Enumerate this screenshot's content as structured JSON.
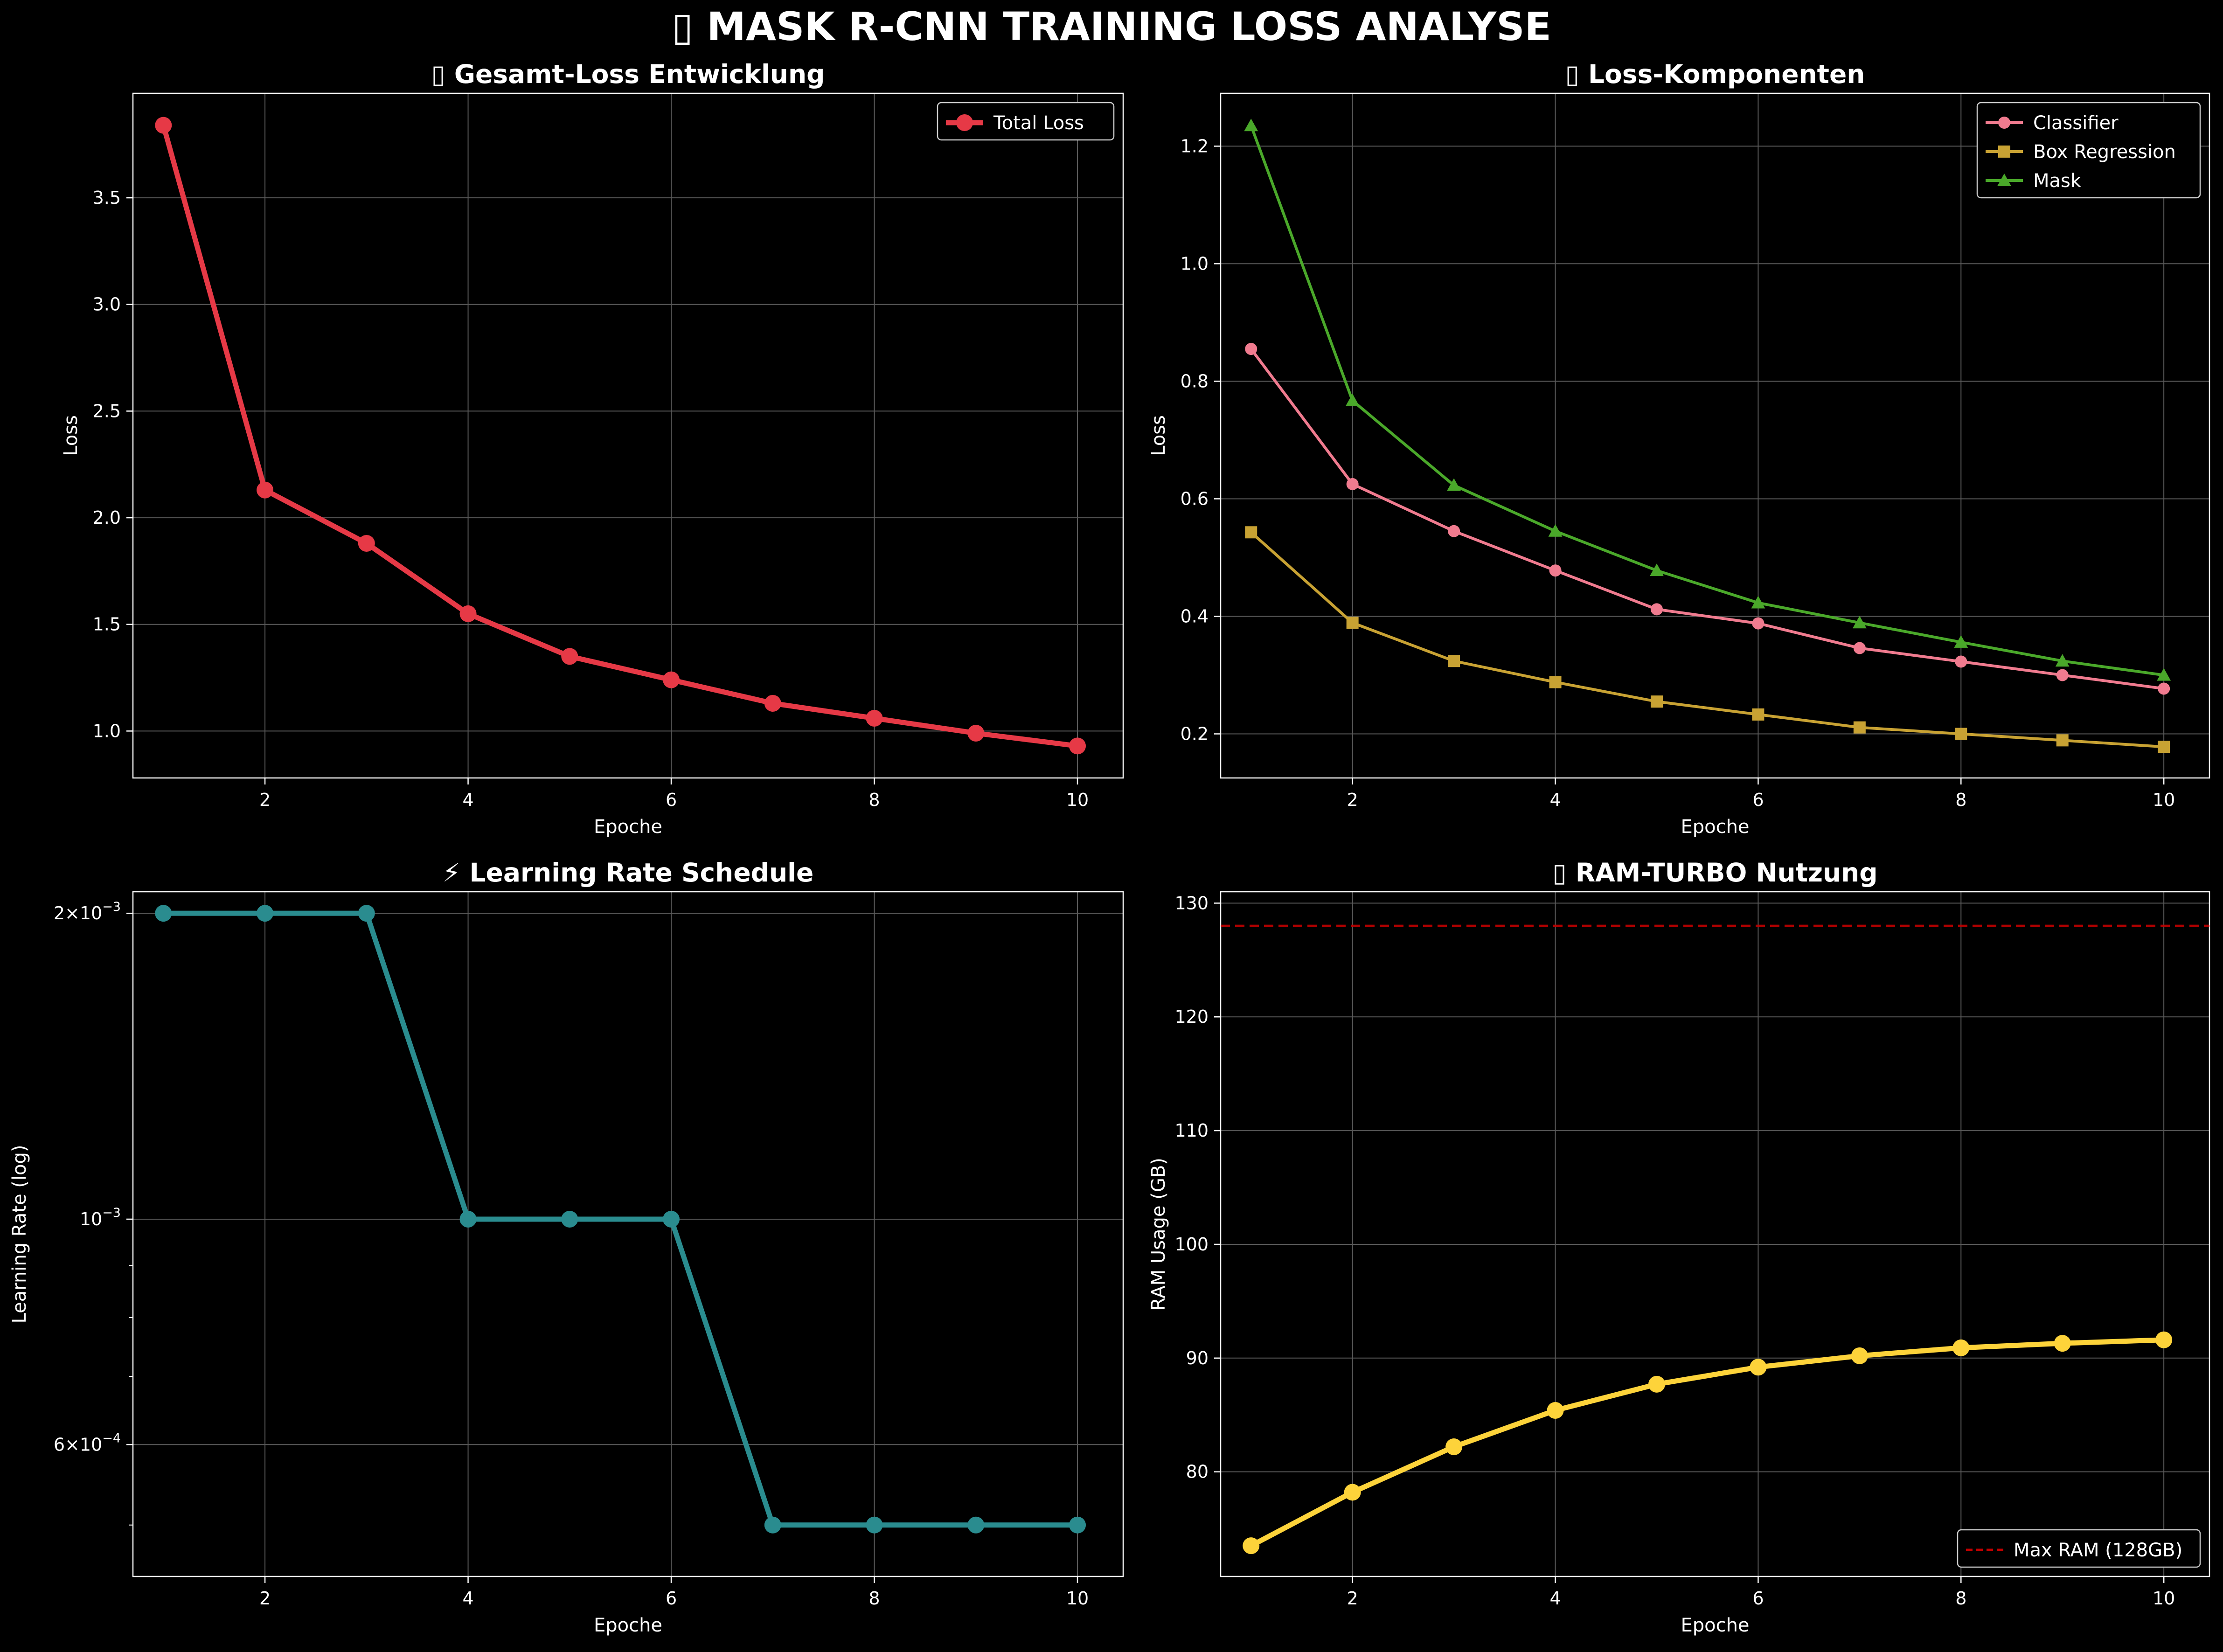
{
  "suptitle": "▯ MASK R-CNN TRAINING LOSS ANALYSE",
  "colors": {
    "background": "#000000",
    "foreground": "#ffffff",
    "grid": "#5a5a5a",
    "total": "#e63946",
    "classifier": "#f07b8f",
    "box": "#c8a233",
    "mask": "#4aa82a",
    "lr": "#2a8c8f",
    "ram": "#fdd33a",
    "maxram": "#c00000"
  },
  "chart_data": [
    {
      "id": "total",
      "type": "line",
      "title": "▯ Gesamt-Loss Entwicklung",
      "xlabel": "Epoche",
      "ylabel": "Loss",
      "xlim": [
        0.7,
        10.45
      ],
      "ylim": [
        0.78,
        3.99
      ],
      "xticks": [
        2,
        4,
        6,
        8,
        10
      ],
      "yticks": [
        1.0,
        1.5,
        2.0,
        2.5,
        3.0,
        3.5
      ],
      "ytick_labels": [
        "1.0",
        "1.5",
        "2.0",
        "2.5",
        "3.0",
        "3.5"
      ],
      "grid": true,
      "legend": "top-right",
      "x": [
        1,
        2,
        3,
        4,
        5,
        6,
        7,
        8,
        9,
        10
      ],
      "series": [
        {
          "name": "Total Loss",
          "color_key": "total",
          "marker": "circle",
          "values": [
            3.84,
            2.13,
            1.88,
            1.55,
            1.35,
            1.24,
            1.13,
            1.06,
            0.99,
            0.93
          ]
        }
      ]
    },
    {
      "id": "components",
      "type": "line",
      "title": "▯ Loss-Komponenten",
      "xlabel": "Epoche",
      "ylabel": "Loss",
      "xlim": [
        0.7,
        10.45
      ],
      "ylim": [
        0.125,
        1.29
      ],
      "xticks": [
        2,
        4,
        6,
        8,
        10
      ],
      "yticks": [
        0.2,
        0.4,
        0.6,
        0.8,
        1.0,
        1.2
      ],
      "ytick_labels": [
        "0.2",
        "0.4",
        "0.6",
        "0.8",
        "1.0",
        "1.2"
      ],
      "grid": true,
      "legend": "top-right",
      "x": [
        1,
        2,
        3,
        4,
        5,
        6,
        7,
        8,
        9,
        10
      ],
      "series": [
        {
          "name": "Classifier",
          "color_key": "classifier",
          "marker": "circle",
          "values": [
            0.855,
            0.625,
            0.545,
            0.478,
            0.412,
            0.388,
            0.346,
            0.323,
            0.3,
            0.277
          ]
        },
        {
          "name": "Box Regression",
          "color_key": "box",
          "marker": "square",
          "values": [
            0.543,
            0.389,
            0.324,
            0.288,
            0.255,
            0.233,
            0.211,
            0.2,
            0.189,
            0.178
          ]
        },
        {
          "name": "Mask",
          "color_key": "mask",
          "marker": "triangle",
          "values": [
            1.235,
            0.767,
            0.623,
            0.545,
            0.478,
            0.423,
            0.389,
            0.356,
            0.324,
            0.3
          ]
        }
      ]
    },
    {
      "id": "lr",
      "type": "line",
      "title": "⚡ Learning Rate Schedule",
      "xlabel": "Epoche",
      "ylabel": "Learning Rate (log)",
      "scale_y": "log",
      "xlim": [
        0.7,
        10.45
      ],
      "ylim": [
        0.000445,
        0.0021
      ],
      "xticks": [
        2,
        4,
        6,
        8,
        10
      ],
      "yticks_major": [
        0.002,
        0.001,
        0.0006
      ],
      "ytick_labels": [
        "2×10⁻³",
        "10⁻³",
        "6×10⁻⁴"
      ],
      "yticks_minor": [
        0.0005,
        0.0007,
        0.0008,
        0.0009
      ],
      "grid": true,
      "x": [
        1,
        2,
        3,
        4,
        5,
        6,
        7,
        8,
        9,
        10
      ],
      "series": [
        {
          "color_key": "lr",
          "marker": "circle",
          "values": [
            0.002,
            0.002,
            0.002,
            0.001,
            0.001,
            0.001,
            0.0005,
            0.0005,
            0.0005,
            0.0005
          ]
        }
      ]
    },
    {
      "id": "ram",
      "type": "line",
      "title": "▯ RAM-TURBO Nutzung",
      "xlabel": "Epoche",
      "ylabel": "RAM Usage (GB)",
      "xlim": [
        0.7,
        10.45
      ],
      "ylim": [
        70.8,
        131.0
      ],
      "xticks": [
        2,
        4,
        6,
        8,
        10
      ],
      "yticks": [
        80,
        90,
        100,
        110,
        120,
        130
      ],
      "ytick_labels": [
        "80",
        "90",
        "100",
        "110",
        "120",
        "130"
      ],
      "grid": true,
      "legend": "bottom-right",
      "x": [
        1,
        2,
        3,
        4,
        5,
        6,
        7,
        8,
        9,
        10
      ],
      "series": [
        {
          "color_key": "ram",
          "marker": "circle",
          "values": [
            73.5,
            78.2,
            82.2,
            85.4,
            87.7,
            89.2,
            90.2,
            90.9,
            91.3,
            91.6
          ]
        }
      ],
      "hlines": [
        {
          "name": "Max RAM (128GB)",
          "y": 128,
          "color_key": "maxram",
          "dashed": true
        }
      ]
    }
  ]
}
